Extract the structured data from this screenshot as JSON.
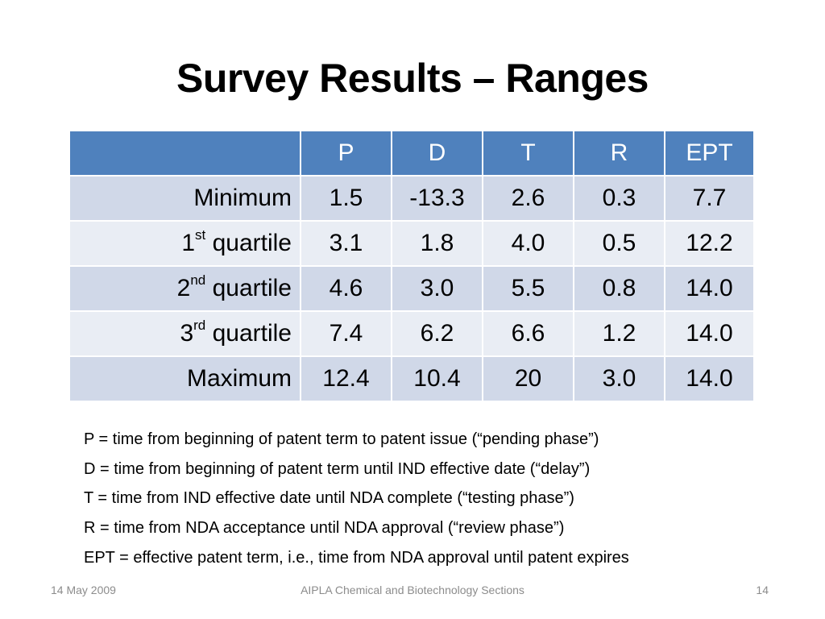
{
  "slide": {
    "title": "Survey Results – Ranges"
  },
  "table": {
    "columns": [
      "",
      "P",
      "D",
      "T",
      "R",
      "EPT"
    ],
    "rows": [
      {
        "label": "Minimum",
        "ordinal": "",
        "sup": "",
        "suffix": "",
        "values": [
          "1.5",
          "-13.3",
          "2.6",
          "0.3",
          "7.7"
        ]
      },
      {
        "label": "",
        "ordinal": "1",
        "sup": "st",
        "suffix": " quartile",
        "values": [
          "3.1",
          "1.8",
          "4.0",
          "0.5",
          "12.2"
        ]
      },
      {
        "label": "",
        "ordinal": "2",
        "sup": "nd",
        "suffix": " quartile",
        "values": [
          "4.6",
          "3.0",
          "5.5",
          "0.8",
          "14.0"
        ]
      },
      {
        "label": "",
        "ordinal": "3",
        "sup": "rd",
        "suffix": " quartile",
        "values": [
          "7.4",
          "6.2",
          "6.6",
          "1.2",
          "14.0"
        ]
      },
      {
        "label": "Maximum",
        "ordinal": "",
        "sup": "",
        "suffix": "",
        "values": [
          "12.4",
          "10.4",
          "20",
          "3.0",
          "14.0"
        ]
      }
    ],
    "header_color": "#4f81bd",
    "band_color_odd": "#d0d8e8",
    "band_color_even": "#e9edf4"
  },
  "legend": [
    "P = time from beginning of patent term to patent issue (“pending phase”)",
    "D = time from beginning of patent term until IND effective date (“delay”)",
    "T = time from IND effective date until NDA complete (“testing phase”)",
    "R = time from NDA acceptance until NDA approval (“review phase”)",
    "EPT = effective patent term, i.e., time from NDA approval until patent expires"
  ],
  "footer": {
    "date": "14 May 2009",
    "center": "AIPLA Chemical and Biotechnology Sections",
    "page": "14"
  }
}
